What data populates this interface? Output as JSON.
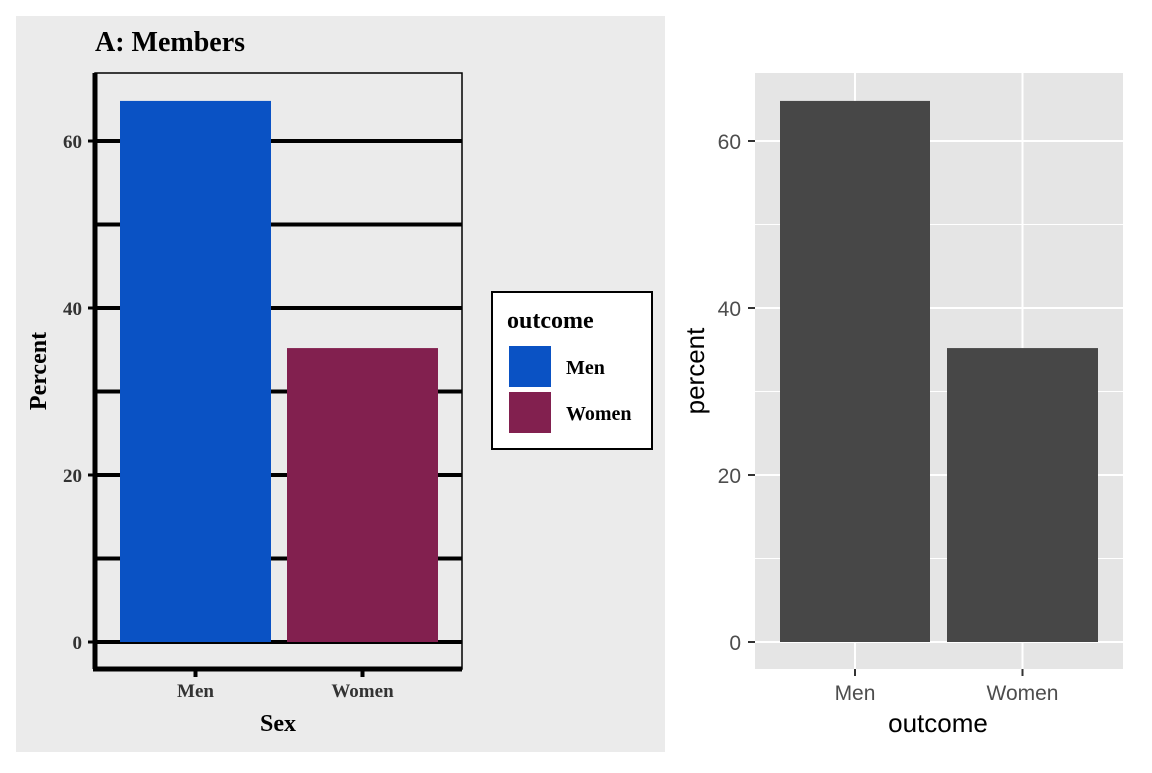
{
  "chart_data": [
    {
      "type": "bar",
      "title": "A: Members",
      "xlabel": "Sex",
      "ylabel": "Percent",
      "categories": [
        "Men",
        "Women"
      ],
      "values": [
        64.8,
        35.2
      ],
      "ylim": [
        0,
        68
      ],
      "yticks": [
        0,
        20,
        40,
        60
      ],
      "grid": true,
      "legend": {
        "title": "outcome",
        "placement": "right",
        "entries": [
          "Men",
          "Women"
        ]
      },
      "colors": [
        "#0a52c4",
        "#82204f"
      ],
      "background": "#ebebeb"
    },
    {
      "type": "bar",
      "title": "",
      "xlabel": "outcome",
      "ylabel": "percent",
      "categories": [
        "Men",
        "Women"
      ],
      "values": [
        64.8,
        35.2
      ],
      "ylim": [
        -3.2,
        68
      ],
      "yticks": [
        0,
        20,
        40,
        60
      ],
      "grid": true,
      "bar_color": "#474747",
      "panel_color": "#e5e5e5",
      "grid_color": "#ffffff"
    }
  ]
}
